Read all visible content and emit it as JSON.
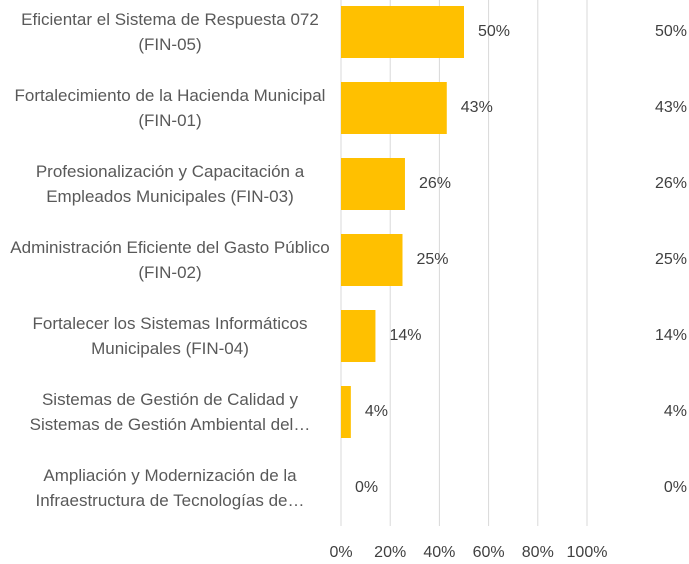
{
  "chart_data": {
    "type": "bar",
    "orientation": "horizontal",
    "categories": [
      "Eficientar el Sistema de Respuesta 072 (FIN-05)",
      "Fortalecimiento de la Hacienda Municipal (FIN-01)",
      "Profesionalización y Capacitación a Empleados Municipales (FIN-03)",
      "Administración Eficiente del Gasto Público (FIN-02)",
      "Fortalecer los Sistemas Informáticos Municipales (FIN-04)",
      "Sistemas de Gestión de Calidad y Sistemas de Gestión Ambiental del…",
      "Ampliación y Modernización de la Infraestructura de Tecnologías de…"
    ],
    "values": [
      50,
      43,
      26,
      25,
      14,
      4,
      0
    ],
    "value_labels": [
      "50%",
      "43%",
      "26%",
      "25%",
      "14%",
      "4%",
      "0%"
    ],
    "color": "#ffc000",
    "xlim": [
      0,
      100
    ],
    "xticks": [
      {
        "value": 0,
        "label": "0%"
      },
      {
        "value": 20,
        "label": "20%"
      },
      {
        "value": 40,
        "label": "40%"
      },
      {
        "value": 60,
        "label": "60%"
      },
      {
        "value": 80,
        "label": "80%"
      },
      {
        "value": 100,
        "label": "100%"
      }
    ],
    "grid": true
  }
}
